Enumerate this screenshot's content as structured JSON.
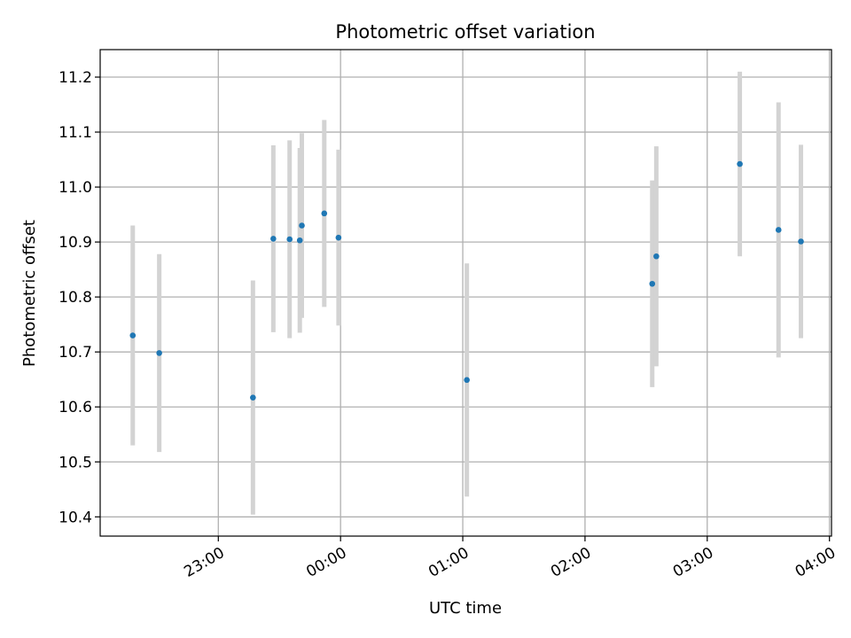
{
  "chart_data": {
    "type": "scatter",
    "title": "Photometric offset variation",
    "xlabel": "UTC time",
    "ylabel": "Photometric offset",
    "x_axis_type": "time",
    "xlim": [
      "22:02",
      "04:01"
    ],
    "ylim": [
      10.365,
      11.25
    ],
    "xticks": [
      "23:00",
      "00:00",
      "01:00",
      "02:00",
      "03:00",
      "04:00"
    ],
    "yticks": [
      "10.4",
      "10.5",
      "10.6",
      "10.7",
      "10.8",
      "10.9",
      "11.0",
      "11.1",
      "11.2"
    ],
    "grid": true,
    "legend": "none",
    "colors": {
      "point": "#1f77b4",
      "errorbar": "#d3d3d3",
      "grid": "#b0b0b0"
    },
    "points": [
      {
        "time": "22:18",
        "y": 10.73,
        "yerr": 0.2
      },
      {
        "time": "22:31",
        "y": 10.698,
        "yerr": 0.18
      },
      {
        "time": "23:17",
        "y": 10.617,
        "yerr": 0.213
      },
      {
        "time": "23:27",
        "y": 10.906,
        "yerr": 0.17
      },
      {
        "time": "23:35",
        "y": 10.905,
        "yerr": 0.18
      },
      {
        "time": "23:40",
        "y": 10.903,
        "yerr": 0.168
      },
      {
        "time": "23:41",
        "y": 10.93,
        "yerr": 0.168
      },
      {
        "time": "23:52",
        "y": 10.952,
        "yerr": 0.17
      },
      {
        "time": "23:59",
        "y": 10.908,
        "yerr": 0.16
      },
      {
        "time": "01:02",
        "y": 10.649,
        "yerr": 0.212
      },
      {
        "time": "02:33",
        "y": 10.824,
        "yerr": 0.188
      },
      {
        "time": "02:35",
        "y": 10.874,
        "yerr": 0.2
      },
      {
        "time": "03:16",
        "y": 11.042,
        "yerr": 0.168
      },
      {
        "time": "03:35",
        "y": 10.922,
        "yerr": 0.232
      },
      {
        "time": "03:46",
        "y": 10.901,
        "yerr": 0.176
      }
    ]
  }
}
